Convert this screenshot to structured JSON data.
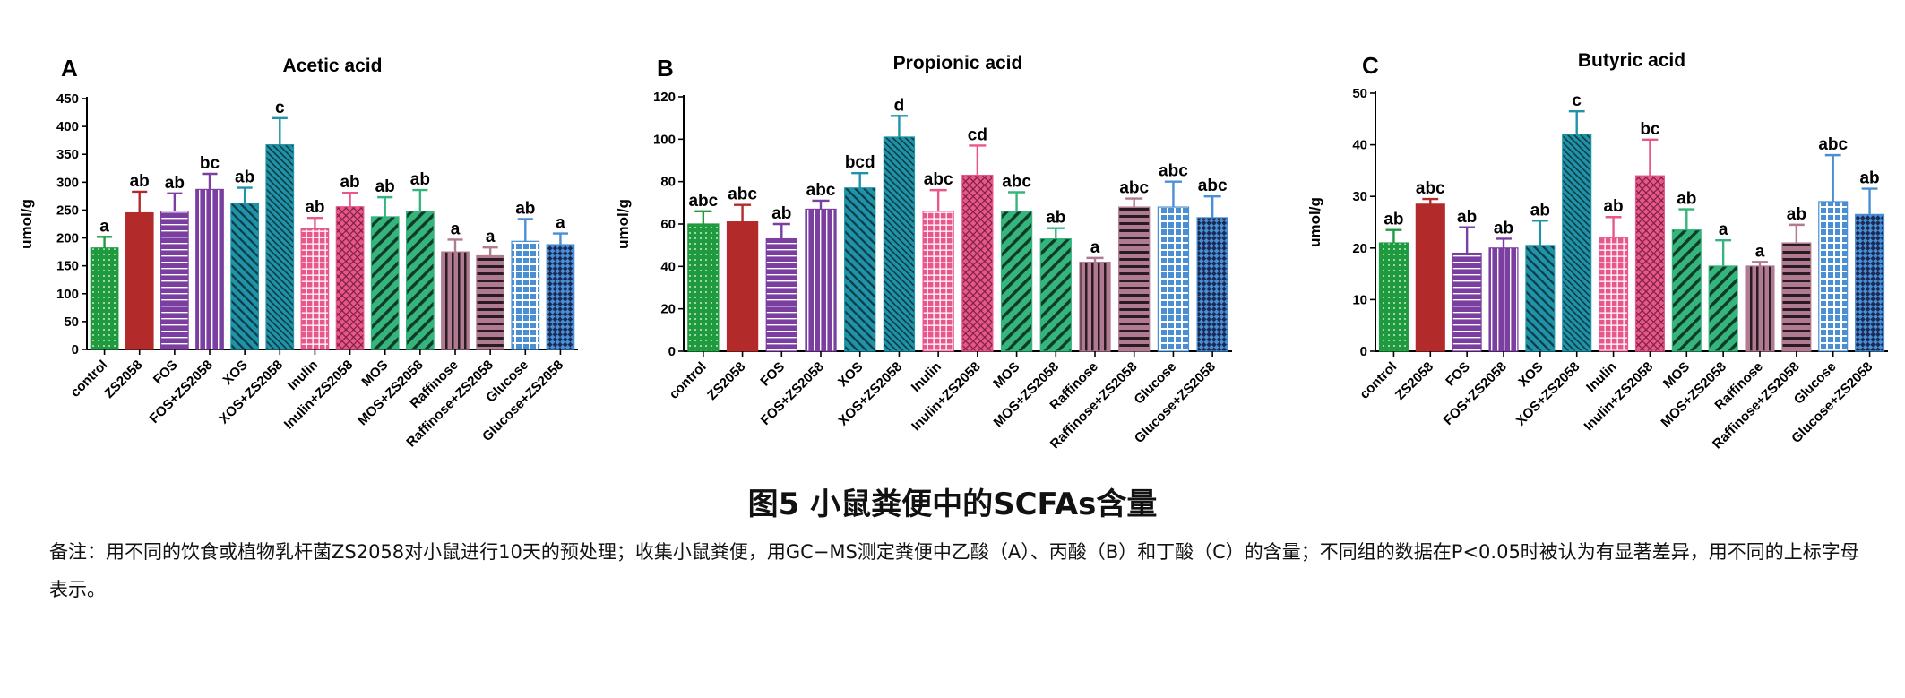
{
  "figure": {
    "title": "图5 小鼠粪便中的SCFAs含量",
    "note": "备注：用不同的饮食或植物乳杆菌ZS2058对小鼠进行10天的预处理；收集小鼠粪便，用GC−MS测定粪便中乙酸（A）、丙酸（B）和丁酸（C）的含量；不同组的数据在P<0.05时被认为有显著差异，用不同的上标字母表示。"
  },
  "chart_data": [
    {
      "type": "bar",
      "panel": "A",
      "title": "Acetic acid",
      "ylabel": "umol/g",
      "ylim": [
        0,
        450
      ],
      "yticks": [
        0,
        50,
        100,
        150,
        200,
        250,
        300,
        350,
        400,
        450
      ],
      "categories": [
        "control",
        "ZS2058",
        "FOS",
        "FOS+ZS2058",
        "XOS",
        "XOS+ZS2058",
        "Inulin",
        "Inulin+ZS2058",
        "MOS",
        "MOS+ZS2058",
        "Raffinose",
        "Raffinose+ZS2058",
        "Glucose",
        "Glucose+ZS2058"
      ],
      "values": [
        182,
        245,
        248,
        287,
        262,
        367,
        216,
        256,
        238,
        248,
        175,
        168,
        194,
        188
      ],
      "errors": [
        20,
        38,
        32,
        28,
        28,
        48,
        20,
        25,
        35,
        38,
        22,
        15,
        40,
        20
      ],
      "labels": [
        "a",
        "ab",
        "ab",
        "bc",
        "ab",
        "c",
        "ab",
        "ab",
        "ab",
        "ab",
        "a",
        "a",
        "ab",
        "a"
      ]
    },
    {
      "type": "bar",
      "panel": "B",
      "title": "Propionic acid",
      "ylabel": "umol/g",
      "ylim": [
        0,
        120
      ],
      "yticks": [
        0,
        20,
        40,
        60,
        80,
        100,
        120
      ],
      "categories": [
        "control",
        "ZS2058",
        "FOS",
        "FOS+ZS2058",
        "XOS",
        "XOS+ZS2058",
        "Inulin",
        "Inulin+ZS2058",
        "MOS",
        "MOS+ZS2058",
        "Raffinose",
        "Raffinose+ZS2058",
        "Glucose",
        "Glucose+ZS2058"
      ],
      "values": [
        60,
        61,
        53,
        67,
        77,
        101,
        66,
        83,
        66,
        53,
        42,
        68,
        68,
        63
      ],
      "errors": [
        6,
        8,
        7,
        4,
        7,
        10,
        10,
        14,
        9,
        5,
        2,
        4,
        12,
        10
      ],
      "labels": [
        "abc",
        "abc",
        "ab",
        "abc",
        "bcd",
        "d",
        "abc",
        "cd",
        "abc",
        "ab",
        "a",
        "abc",
        "abc",
        "abc"
      ]
    },
    {
      "type": "bar",
      "panel": "C",
      "title": "Butyric acid",
      "ylabel": "umol/g",
      "ylim": [
        0,
        50
      ],
      "yticks": [
        0,
        10,
        20,
        30,
        40,
        50
      ],
      "categories": [
        "control",
        "ZS2058",
        "FOS",
        "FOS+ZS2058",
        "XOS",
        "XOS+ZS2058",
        "Inulin",
        "Inulin+ZS2058",
        "MOS",
        "MOS+ZS2058",
        "Raffinose",
        "Raffinose+ZS2058",
        "Glucose",
        "Glucose+ZS2058"
      ],
      "values": [
        21,
        28.5,
        19,
        20,
        20.5,
        42,
        22,
        34,
        23.5,
        16.5,
        16.5,
        21,
        29,
        26.5
      ],
      "errors": [
        2.5,
        1,
        5,
        1.8,
        4.8,
        4.5,
        4,
        7,
        4,
        5,
        0.8,
        3.5,
        9,
        5
      ],
      "labels": [
        "ab",
        "abc",
        "ab",
        "ab",
        "ab",
        "c",
        "ab",
        "bc",
        "ab",
        "a",
        "a",
        "ab",
        "abc",
        "ab"
      ]
    }
  ],
  "style": {
    "bar_colors": [
      "#1f9a3e",
      "#b22a2a",
      "#7a3fa0",
      "#7a3fa0",
      "#1f93a8",
      "#1f93a8",
      "#e8578c",
      "#e8578c",
      "#35b57c",
      "#35b57c",
      "#b07a90",
      "#b07a90",
      "#4a8fd4",
      "#4a8fd4"
    ],
    "patterns": [
      "dots",
      "solid",
      "hlines",
      "hlines-v",
      "diag",
      "diag-dense",
      "grid",
      "crosshatch",
      "diag-wide",
      "diag-wide",
      "vlines",
      "hlines-thick",
      "grid-big",
      "checker"
    ]
  }
}
